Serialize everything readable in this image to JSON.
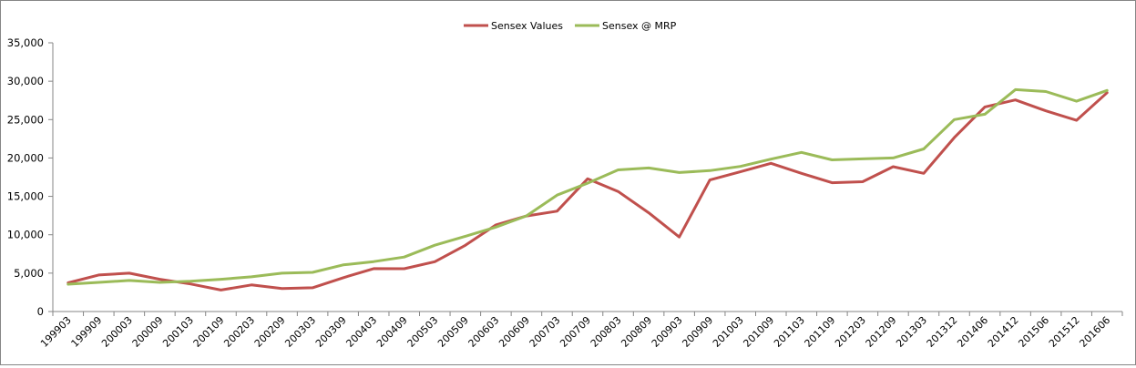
{
  "chart_data": {
    "type": "line",
    "title": "",
    "xlabel": "",
    "ylabel": "",
    "ylim": [
      0,
      35000
    ],
    "yticks": [
      0,
      5000,
      10000,
      15000,
      20000,
      25000,
      30000,
      35000
    ],
    "ytick_labels": [
      "0",
      "5,000",
      "10,000",
      "15,000",
      "20,000",
      "25,000",
      "30,000",
      "35,000"
    ],
    "grid": false,
    "legend_position": "top-center",
    "categories": [
      "199903",
      "199909",
      "200003",
      "200009",
      "200103",
      "200109",
      "200203",
      "200209",
      "200303",
      "200309",
      "200403",
      "200409",
      "200503",
      "200509",
      "200603",
      "200609",
      "200703",
      "200709",
      "200803",
      "200809",
      "200903",
      "200909",
      "201003",
      "201009",
      "201103",
      "201109",
      "201203",
      "201209",
      "201303",
      "201312",
      "201406",
      "201412",
      "201506",
      "201512",
      "201606"
    ],
    "series": [
      {
        "name": "Sensex Values",
        "color": "#C0504D",
        "values": [
          3740,
          4760,
          5000,
          4200,
          3600,
          2800,
          3470,
          2990,
          3100,
          4400,
          5590,
          5580,
          6490,
          8630,
          11280,
          12450,
          13070,
          17290,
          15640,
          12860,
          9710,
          17130,
          18200,
          19300,
          18000,
          16780,
          16910,
          18870,
          18000,
          22650,
          26650,
          27560,
          26140,
          24900,
          28500
        ]
      },
      {
        "name": "Sensex @ MRP",
        "color": "#9BBB59",
        "values": [
          3560,
          3800,
          4050,
          3800,
          3950,
          4200,
          4520,
          5000,
          5100,
          6080,
          6500,
          7100,
          8640,
          9800,
          11000,
          12460,
          15160,
          16720,
          18450,
          18700,
          18100,
          18360,
          18900,
          19850,
          20730,
          19750,
          19880,
          20000,
          21180,
          25000,
          25700,
          28900,
          28650,
          27400,
          28800
        ]
      }
    ]
  }
}
